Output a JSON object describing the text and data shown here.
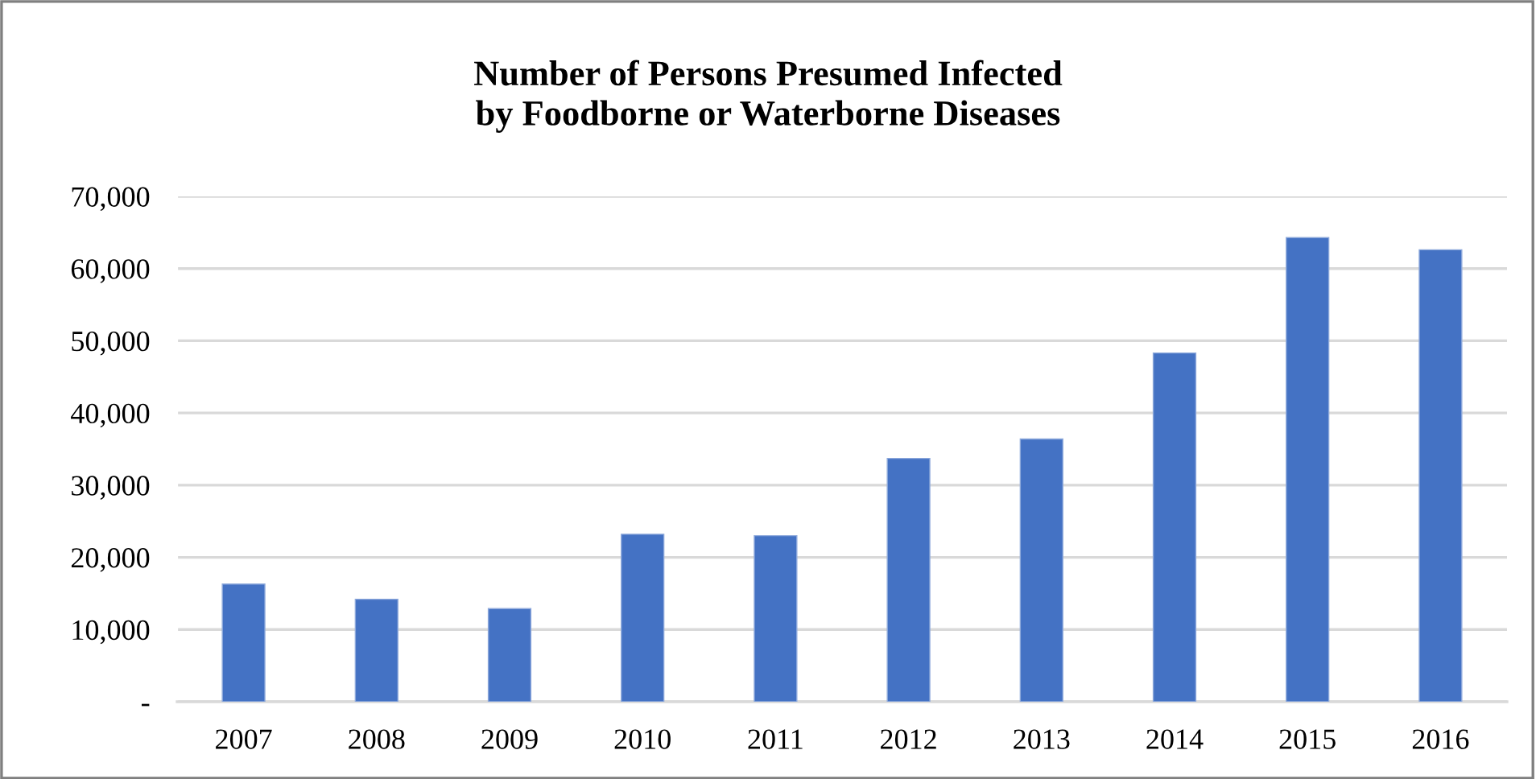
{
  "chart_data": {
    "type": "bar",
    "title": "Number of Persons Presumed Infected\nby Foodborne or Waterborne Diseases",
    "categories": [
      "2007",
      "2008",
      "2009",
      "2010",
      "2011",
      "2012",
      "2013",
      "2014",
      "2015",
      "2016"
    ],
    "values": [
      16300,
      14200,
      12900,
      23200,
      23000,
      33700,
      36400,
      48300,
      64300,
      62600
    ],
    "color": "#4472c4",
    "ylim": [
      0,
      70000
    ],
    "yticks": [
      {
        "value": 0,
        "label": "-"
      },
      {
        "value": 10000,
        "label": "10,000"
      },
      {
        "value": 20000,
        "label": "20,000"
      },
      {
        "value": 30000,
        "label": "30,000"
      },
      {
        "value": 40000,
        "label": "40,000"
      },
      {
        "value": 50000,
        "label": "50,000"
      },
      {
        "value": 60000,
        "label": "60,000"
      },
      {
        "value": 70000,
        "label": "70,000"
      }
    ],
    "grid": "y",
    "legend": false
  }
}
